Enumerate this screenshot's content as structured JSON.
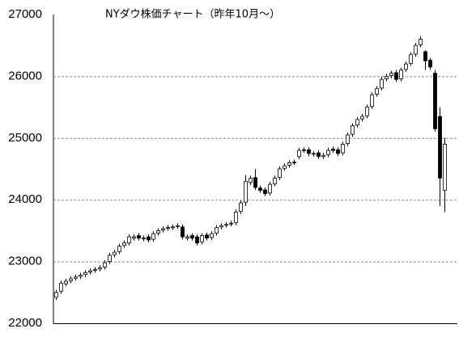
{
  "chart_data": {
    "type": "candlestick",
    "title": "NYダウ株価チャート（昨年10月～）",
    "ylim": [
      22000,
      27000
    ],
    "yticks": [
      22000,
      23000,
      24000,
      25000,
      26000,
      27000
    ],
    "grid": true,
    "up_color": "#ffffff",
    "down_color": "#000000",
    "series": [
      {
        "open": [
          22420,
          22520,
          22640,
          22690,
          22730,
          22760,
          22790,
          22830,
          22860,
          22880,
          22910,
          23000,
          23110,
          23160,
          23260,
          23300,
          23380,
          23420,
          23370,
          23400,
          23360,
          23460,
          23510,
          23540,
          23550,
          23570,
          23560,
          23380,
          23420,
          23400,
          23320,
          23430,
          23390,
          23460,
          23560,
          23590,
          23610,
          23630,
          23810,
          23960,
          24280,
          24360,
          24190,
          24160,
          24110,
          24260,
          24360,
          24510,
          24560,
          24610,
          24700,
          24810,
          24810,
          24740,
          24760,
          24700,
          24730,
          24820,
          24810,
          24760,
          24910,
          25060,
          25210,
          25310,
          25360,
          25510,
          25710,
          25810,
          25960,
          26010,
          26060,
          25960,
          26110,
          26210,
          26360,
          26510,
          26400,
          26260,
          26050,
          25350,
          24150
        ],
        "high": [
          22540,
          22690,
          22720,
          22760,
          22790,
          22820,
          22860,
          22890,
          22910,
          22940,
          23020,
          23140,
          23190,
          23290,
          23340,
          23440,
          23440,
          23460,
          23420,
          23440,
          23490,
          23540,
          23570,
          23590,
          23600,
          23620,
          23600,
          23440,
          23460,
          23440,
          23460,
          23470,
          23490,
          23590,
          23620,
          23640,
          23660,
          23840,
          23990,
          24400,
          24390,
          24500,
          24230,
          24200,
          24290,
          24390,
          24540,
          24590,
          24640,
          24650,
          24840,
          24850,
          24850,
          24790,
          24800,
          24760,
          24840,
          24860,
          24850,
          24940,
          25090,
          25240,
          25340,
          25390,
          25540,
          25740,
          25840,
          25990,
          26040,
          26090,
          26100,
          26140,
          26240,
          26390,
          26540,
          26650,
          26420,
          26300,
          26100,
          25500,
          25000
        ],
        "low": [
          22380,
          22480,
          22600,
          22650,
          22690,
          22720,
          22750,
          22790,
          22820,
          22840,
          22870,
          22960,
          23070,
          23120,
          23220,
          23260,
          23340,
          23340,
          23330,
          23310,
          23320,
          23420,
          23470,
          23500,
          23510,
          23530,
          23360,
          23340,
          23340,
          23260,
          23280,
          23340,
          23350,
          23420,
          23520,
          23550,
          23570,
          23590,
          23770,
          23900,
          24240,
          24160,
          24110,
          24060,
          24070,
          24220,
          24320,
          24470,
          24520,
          24560,
          24660,
          24760,
          24710,
          24700,
          24660,
          24660,
          24690,
          24760,
          24710,
          24720,
          24870,
          25020,
          25170,
          25270,
          25320,
          25470,
          25670,
          25770,
          25920,
          25970,
          25910,
          25920,
          26070,
          26170,
          26320,
          26470,
          26100,
          26110,
          25100,
          23900,
          23800
        ],
        "close": [
          22500,
          22650,
          22680,
          22720,
          22750,
          22780,
          22820,
          22850,
          22870,
          22900,
          22980,
          23100,
          23150,
          23250,
          23300,
          23400,
          23400,
          23380,
          23380,
          23350,
          23450,
          23500,
          23530,
          23550,
          23560,
          23580,
          23400,
          23400,
          23380,
          23300,
          23420,
          23380,
          23450,
          23550,
          23580,
          23600,
          23620,
          23800,
          23950,
          24300,
          24350,
          24200,
          24150,
          24100,
          24250,
          24350,
          24500,
          24550,
          24600,
          24600,
          24800,
          24800,
          24750,
          24750,
          24700,
          24720,
          24800,
          24800,
          24750,
          24900,
          25050,
          25200,
          25300,
          25350,
          25500,
          25700,
          25800,
          25950,
          26000,
          26050,
          25950,
          26100,
          26200,
          26350,
          26500,
          26600,
          26250,
          26150,
          25150,
          24350,
          24900
        ]
      }
    ]
  }
}
